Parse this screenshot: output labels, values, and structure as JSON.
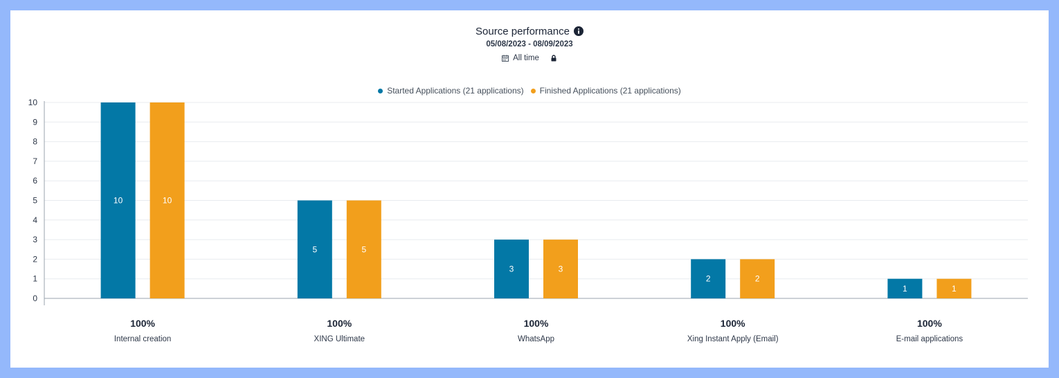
{
  "header": {
    "title": "Source performance",
    "date_range": "05/08/2023 - 08/09/2023",
    "filter_label": "All time"
  },
  "icons": {
    "info": "info-icon",
    "calendar": "calendar-icon",
    "lock": "lock-icon"
  },
  "colors": {
    "started": "#0378a6",
    "finished": "#f29f1c",
    "grid": "#e8ebef",
    "axis": "#9aa3ad"
  },
  "chart_data": {
    "type": "bar",
    "title": "Source performance",
    "subtitle": "05/08/2023 - 08/09/2023",
    "categories": [
      "Internal creation",
      "XING Ultimate",
      "WhatsApp",
      "Xing Instant Apply (Email)",
      "E-mail applications"
    ],
    "percentages": [
      "100%",
      "100%",
      "100%",
      "100%",
      "100%"
    ],
    "series": [
      {
        "name": "Started Applications (21 applications)",
        "values": [
          10,
          5,
          3,
          2,
          1
        ]
      },
      {
        "name": "Finished Applications (21 applications)",
        "values": [
          10,
          5,
          3,
          2,
          1
        ]
      }
    ],
    "ylim": [
      0,
      10
    ],
    "yticks": [
      0,
      1,
      2,
      3,
      4,
      5,
      6,
      7,
      8,
      9,
      10
    ],
    "xlabel": "",
    "ylabel": "",
    "legend_position": "top-center",
    "grid": true
  }
}
